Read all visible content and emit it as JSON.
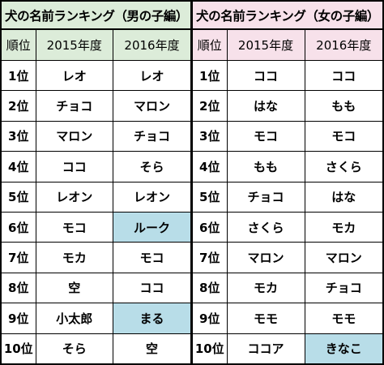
{
  "boys": {
    "title": "犬の名前ランキング（男の子編）",
    "headers": [
      "順位",
      "2015年度",
      "2016年度"
    ],
    "rows": [
      {
        "rank": "1位",
        "y2015": "レオ",
        "y2016": "レオ"
      },
      {
        "rank": "2位",
        "y2015": "チョコ",
        "y2016": "マロン"
      },
      {
        "rank": "3位",
        "y2015": "マロン",
        "y2016": "チョコ"
      },
      {
        "rank": "4位",
        "y2015": "ココ",
        "y2016": "そら"
      },
      {
        "rank": "5位",
        "y2015": "レオン",
        "y2016": "レオン"
      },
      {
        "rank": "6位",
        "y2015": "モコ",
        "y2016": "ルーク"
      },
      {
        "rank": "7位",
        "y2015": "モカ",
        "y2016": "モコ"
      },
      {
        "rank": "8位",
        "y2015": "空",
        "y2016": "ココ"
      },
      {
        "rank": "9位",
        "y2015": "小太郎",
        "y2016": "まる"
      },
      {
        "rank": "10位",
        "y2015": "そら",
        "y2016": "空"
      }
    ],
    "highlight_color": "#b8dde8",
    "header_color": "#dcecd9"
  },
  "girls": {
    "title": "犬の名前ランキング（女の子編）",
    "headers": [
      "順位",
      "2015年度",
      "2016年度"
    ],
    "rows": [
      {
        "rank": "1位",
        "y2015": "ココ",
        "y2016": "ココ"
      },
      {
        "rank": "2位",
        "y2015": "はな",
        "y2016": "もも"
      },
      {
        "rank": "3位",
        "y2015": "モコ",
        "y2016": "モコ"
      },
      {
        "rank": "4位",
        "y2015": "もも",
        "y2016": "さくら"
      },
      {
        "rank": "5位",
        "y2015": "チョコ",
        "y2016": "はな"
      },
      {
        "rank": "6位",
        "y2015": "さくら",
        "y2016": "モカ"
      },
      {
        "rank": "7位",
        "y2015": "マロン",
        "y2016": "マロン"
      },
      {
        "rank": "8位",
        "y2015": "モカ",
        "y2016": "チョコ"
      },
      {
        "rank": "9位",
        "y2015": "モモ",
        "y2016": "モモ"
      },
      {
        "rank": "10位",
        "y2015": "ココア",
        "y2016": "きなこ"
      }
    ],
    "highlight_color": "#b8dde8",
    "header_color": "#f7e1ea"
  }
}
